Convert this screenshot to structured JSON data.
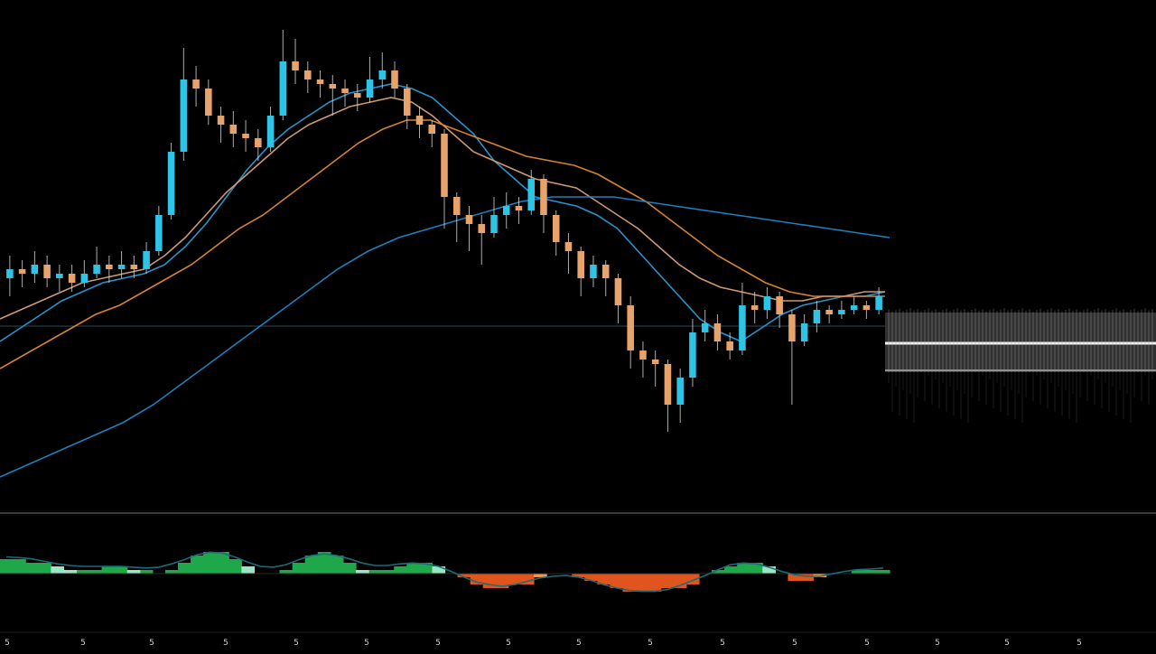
{
  "symbol": "",
  "colors": {
    "background": "#000000",
    "up": "#2ec4e6",
    "down": "#e8a36a",
    "wick": "#d9d9d9",
    "ma_fast": "#2a9bd8",
    "ma_mid": "#d8a07a",
    "ma_slow_orange": "#e08a35",
    "ma_slow_blue": "#1f86c8",
    "hist_pos": "#1fa84a",
    "hist_pos_light": "#b9f5e1",
    "hist_neg": "#e0551d",
    "hist_neg_light": "#f5b56a",
    "macd_line": "#1b6b78",
    "divider": "#3a3a3a",
    "level": "#2a4a5a"
  },
  "x_ticks": [
    "5",
    "5",
    "5",
    "5",
    "5",
    "5",
    "5",
    "5",
    "5",
    "5",
    "5",
    "5",
    "5",
    "5",
    "5",
    "5",
    ""
  ],
  "chart_data": [
    {
      "type": "candlestick",
      "title": "",
      "xlabel": "",
      "ylabel": "",
      "ylim": [
        0,
        100
      ],
      "grid": false,
      "candles": [
        {
          "o": 44,
          "c": 46,
          "h": 49,
          "l": 40
        },
        {
          "o": 46,
          "c": 45,
          "h": 48,
          "l": 42
        },
        {
          "o": 45,
          "c": 47,
          "h": 50,
          "l": 43
        },
        {
          "o": 47,
          "c": 44,
          "h": 49,
          "l": 42
        },
        {
          "o": 44,
          "c": 45,
          "h": 47,
          "l": 41
        },
        {
          "o": 45,
          "c": 43,
          "h": 47,
          "l": 41
        },
        {
          "o": 43,
          "c": 45,
          "h": 48,
          "l": 42
        },
        {
          "o": 45,
          "c": 47,
          "h": 51,
          "l": 44
        },
        {
          "o": 47,
          "c": 46,
          "h": 49,
          "l": 43
        },
        {
          "o": 46,
          "c": 47,
          "h": 50,
          "l": 44
        },
        {
          "o": 47,
          "c": 46,
          "h": 49,
          "l": 44
        },
        {
          "o": 46,
          "c": 50,
          "h": 52,
          "l": 45
        },
        {
          "o": 50,
          "c": 58,
          "h": 60,
          "l": 49
        },
        {
          "o": 58,
          "c": 72,
          "h": 74,
          "l": 57
        },
        {
          "o": 72,
          "c": 88,
          "h": 95,
          "l": 70
        },
        {
          "o": 88,
          "c": 86,
          "h": 91,
          "l": 82
        },
        {
          "o": 86,
          "c": 80,
          "h": 88,
          "l": 78
        },
        {
          "o": 80,
          "c": 78,
          "h": 82,
          "l": 74
        },
        {
          "o": 78,
          "c": 76,
          "h": 81,
          "l": 73
        },
        {
          "o": 76,
          "c": 75,
          "h": 79,
          "l": 72
        },
        {
          "o": 75,
          "c": 73,
          "h": 77,
          "l": 70
        },
        {
          "o": 73,
          "c": 80,
          "h": 82,
          "l": 72
        },
        {
          "o": 80,
          "c": 92,
          "h": 99,
          "l": 79
        },
        {
          "o": 92,
          "c": 90,
          "h": 97,
          "l": 87
        },
        {
          "o": 90,
          "c": 88,
          "h": 92,
          "l": 85
        },
        {
          "o": 88,
          "c": 87,
          "h": 90,
          "l": 84
        },
        {
          "o": 87,
          "c": 86,
          "h": 89,
          "l": 80
        },
        {
          "o": 86,
          "c": 85,
          "h": 88,
          "l": 82
        },
        {
          "o": 85,
          "c": 84,
          "h": 87,
          "l": 81
        },
        {
          "o": 84,
          "c": 88,
          "h": 93,
          "l": 83
        },
        {
          "o": 88,
          "c": 90,
          "h": 94,
          "l": 86
        },
        {
          "o": 90,
          "c": 86,
          "h": 92,
          "l": 84
        },
        {
          "o": 86,
          "c": 80,
          "h": 87,
          "l": 77
        },
        {
          "o": 80,
          "c": 78,
          "h": 82,
          "l": 75
        },
        {
          "o": 78,
          "c": 76,
          "h": 79,
          "l": 73
        },
        {
          "o": 76,
          "c": 62,
          "h": 77,
          "l": 55
        },
        {
          "o": 62,
          "c": 58,
          "h": 63,
          "l": 52
        },
        {
          "o": 58,
          "c": 56,
          "h": 60,
          "l": 50
        },
        {
          "o": 56,
          "c": 54,
          "h": 58,
          "l": 47
        },
        {
          "o": 54,
          "c": 58,
          "h": 62,
          "l": 53
        },
        {
          "o": 58,
          "c": 60,
          "h": 63,
          "l": 55
        },
        {
          "o": 60,
          "c": 59,
          "h": 62,
          "l": 56
        },
        {
          "o": 59,
          "c": 66,
          "h": 68,
          "l": 58
        },
        {
          "o": 66,
          "c": 58,
          "h": 67,
          "l": 54
        },
        {
          "o": 58,
          "c": 52,
          "h": 59,
          "l": 49
        },
        {
          "o": 52,
          "c": 50,
          "h": 54,
          "l": 45
        },
        {
          "o": 50,
          "c": 44,
          "h": 51,
          "l": 40
        },
        {
          "o": 44,
          "c": 47,
          "h": 49,
          "l": 42
        },
        {
          "o": 47,
          "c": 44,
          "h": 48,
          "l": 40
        },
        {
          "o": 44,
          "c": 38,
          "h": 45,
          "l": 34
        },
        {
          "o": 38,
          "c": 28,
          "h": 40,
          "l": 24
        },
        {
          "o": 28,
          "c": 26,
          "h": 30,
          "l": 22
        },
        {
          "o": 26,
          "c": 25,
          "h": 28,
          "l": 20
        },
        {
          "o": 25,
          "c": 16,
          "h": 26,
          "l": 10
        },
        {
          "o": 16,
          "c": 22,
          "h": 24,
          "l": 12
        },
        {
          "o": 22,
          "c": 32,
          "h": 35,
          "l": 20
        },
        {
          "o": 32,
          "c": 34,
          "h": 37,
          "l": 30
        },
        {
          "o": 34,
          "c": 30,
          "h": 36,
          "l": 28
        },
        {
          "o": 30,
          "c": 28,
          "h": 32,
          "l": 26
        },
        {
          "o": 28,
          "c": 38,
          "h": 43,
          "l": 27
        },
        {
          "o": 38,
          "c": 37,
          "h": 41,
          "l": 34
        },
        {
          "o": 37,
          "c": 40,
          "h": 42,
          "l": 35
        },
        {
          "o": 40,
          "c": 36,
          "h": 41,
          "l": 33
        },
        {
          "o": 36,
          "c": 30,
          "h": 37,
          "l": 16
        },
        {
          "o": 30,
          "c": 34,
          "h": 36,
          "l": 29
        },
        {
          "o": 34,
          "c": 37,
          "h": 39,
          "l": 32
        },
        {
          "o": 37,
          "c": 36,
          "h": 38,
          "l": 34
        },
        {
          "o": 36,
          "c": 37,
          "h": 39,
          "l": 35
        },
        {
          "o": 37,
          "c": 38,
          "h": 40,
          "l": 36
        },
        {
          "o": 38,
          "c": 37,
          "h": 39,
          "l": 35
        },
        {
          "o": 37,
          "c": 40,
          "h": 42,
          "l": 36
        }
      ],
      "moving_averages": [
        {
          "role": "fast",
          "points": [
            30,
            33,
            36,
            39,
            41,
            43,
            44,
            45,
            47,
            51,
            56,
            62,
            68,
            73,
            77,
            80,
            83,
            85,
            86,
            87,
            86,
            84,
            80,
            76,
            70,
            66,
            62,
            61,
            60,
            58,
            55,
            50,
            45,
            40,
            35,
            32,
            30,
            33,
            36,
            38,
            39,
            40,
            40,
            41
          ]
        },
        {
          "role": "mid",
          "points": [
            35,
            37,
            39,
            41,
            43,
            44,
            45,
            46,
            49,
            53,
            58,
            63,
            67,
            71,
            75,
            78,
            80,
            82,
            83,
            84,
            83,
            80,
            76,
            72,
            70,
            68,
            66,
            65,
            64,
            61,
            58,
            55,
            51,
            47,
            44,
            42,
            41,
            40,
            39,
            39,
            40,
            40,
            41,
            41
          ]
        },
        {
          "role": "slow_orange",
          "points": [
            24,
            27,
            30,
            33,
            36,
            38,
            41,
            44,
            47,
            51,
            55,
            58,
            62,
            66,
            70,
            74,
            77,
            79,
            79,
            77,
            75,
            73,
            71,
            70,
            69,
            67,
            64,
            61,
            57,
            53,
            49,
            46,
            43,
            41,
            40,
            40,
            40,
            40
          ]
        },
        {
          "role": "slow_blue",
          "points": [
            0,
            3,
            6,
            9,
            12,
            16,
            21,
            26,
            31,
            36,
            41,
            46,
            50,
            53,
            55,
            57,
            59,
            61,
            62,
            62,
            62,
            61,
            60,
            59,
            58,
            57,
            56,
            55,
            54,
            53
          ]
        }
      ]
    },
    {
      "type": "bar",
      "title": "",
      "ylim": [
        -10,
        10
      ],
      "histogram": [
        4,
        4,
        3,
        3,
        2,
        1,
        1,
        1,
        2,
        2,
        1,
        1,
        0,
        1,
        3,
        5,
        6,
        6,
        4,
        2,
        0,
        0,
        1,
        3,
        5,
        6,
        5,
        3,
        1,
        1,
        1,
        2,
        3,
        3,
        2,
        0,
        -1,
        -3,
        -4,
        -4,
        -3,
        -3,
        -1,
        0,
        0,
        -1,
        -2,
        -3,
        -4,
        -5,
        -5,
        -5,
        -4,
        -4,
        -3,
        0,
        1,
        2,
        3,
        3,
        2,
        0,
        -2,
        -2,
        -1,
        0,
        0,
        1,
        1,
        1
      ]
    }
  ]
}
